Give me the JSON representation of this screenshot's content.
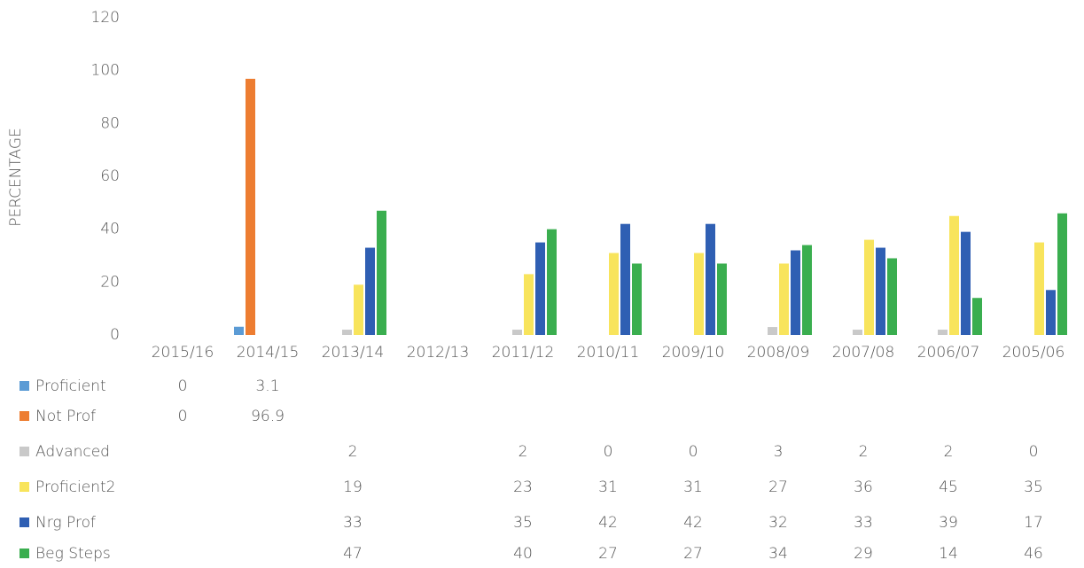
{
  "chart_data": {
    "type": "bar",
    "y_label": "PERCENTAGE",
    "categories": [
      "2015/16",
      "2014/15",
      "2013/14",
      "2012/13",
      "2011/12",
      "2010/11",
      "2009/10",
      "2008/09",
      "2007/08",
      "2006/07",
      "2005/06"
    ],
    "series": [
      {
        "name": "Proficient",
        "color": "#5b9bd5",
        "values": [
          0,
          3.1,
          null,
          null,
          null,
          null,
          null,
          null,
          null,
          null,
          null
        ]
      },
      {
        "name": "Not Prof",
        "color": "#ed7d31",
        "values": [
          0,
          96.9,
          null,
          null,
          null,
          null,
          null,
          null,
          null,
          null,
          null
        ]
      },
      {
        "name": "Advanced",
        "color": "#c9c9c9",
        "values": [
          null,
          null,
          2,
          null,
          2,
          0,
          0,
          3,
          2,
          2,
          0
        ]
      },
      {
        "name": "Proficient2",
        "color": "#f8e45c",
        "values": [
          null,
          null,
          19,
          null,
          23,
          31,
          31,
          27,
          36,
          45,
          35
        ]
      },
      {
        "name": "Nrg Prof",
        "color": "#2f5fb3",
        "values": [
          null,
          null,
          33,
          null,
          35,
          42,
          42,
          32,
          33,
          39,
          17
        ]
      },
      {
        "name": "Beg Steps",
        "color": "#3aae4f",
        "values": [
          null,
          null,
          47,
          null,
          40,
          27,
          27,
          34,
          29,
          14,
          46
        ]
      }
    ],
    "ylim": [
      0,
      120
    ],
    "yticks": [
      0,
      20,
      40,
      60,
      80,
      100,
      120
    ],
    "grid": false,
    "legend": "bottom-left"
  }
}
